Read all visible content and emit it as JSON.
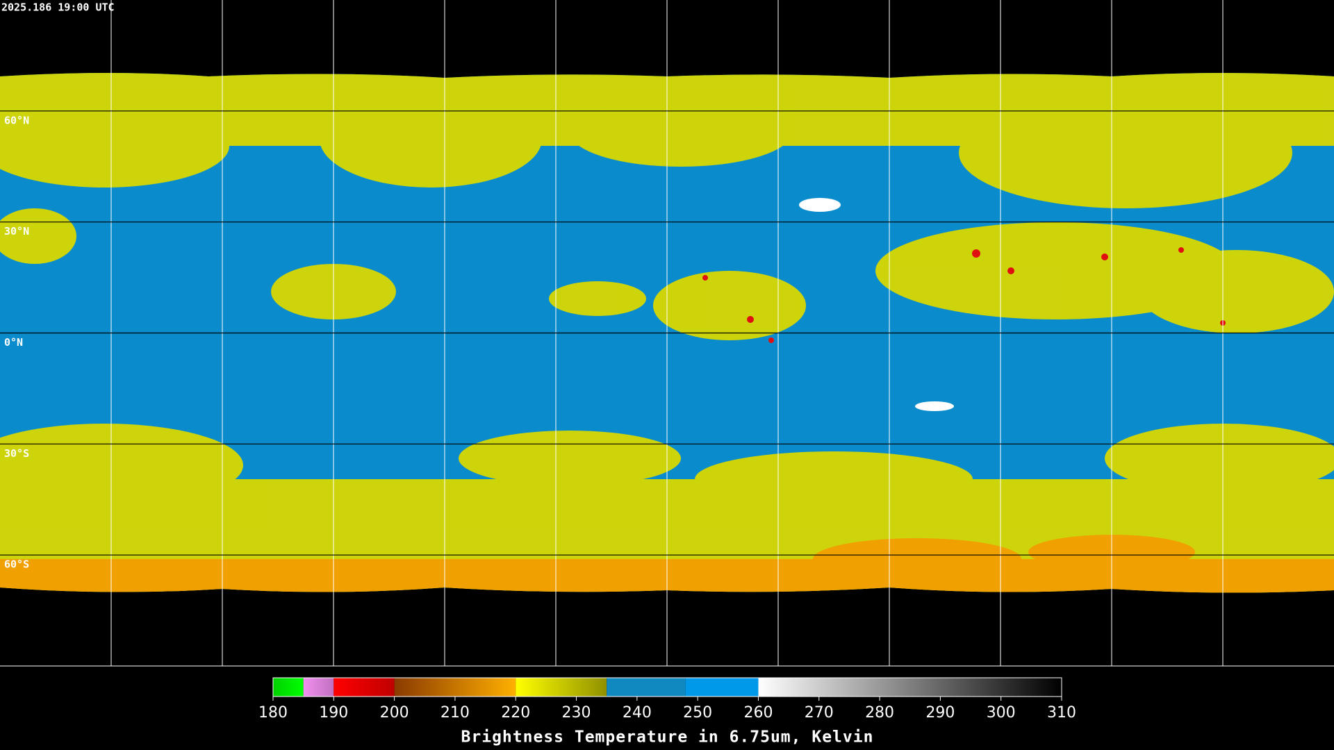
{
  "header": {
    "timestamp": "2025.186 19:00 UTC"
  },
  "map": {
    "ylim": [
      90,
      -90
    ],
    "lat_ticks": [
      {
        "value": 60,
        "label": "60°N"
      },
      {
        "value": 30,
        "label": "30°N"
      },
      {
        "value": 0,
        "label": "0°N"
      },
      {
        "value": -30,
        "label": "30°S"
      },
      {
        "value": -60,
        "label": "60°S"
      }
    ]
  },
  "colorbar": {
    "title": "Brightness Temperature in 6.75um, Kelvin",
    "xlim": [
      180,
      310
    ],
    "ticks": [
      180,
      190,
      200,
      210,
      220,
      230,
      240,
      250,
      260,
      270,
      280,
      290,
      300,
      310
    ],
    "segments": [
      {
        "from": 180,
        "to": 185,
        "colors": [
          "#00d000",
          "#00ff00"
        ]
      },
      {
        "from": 185,
        "to": 190,
        "colors": [
          "#f090f0",
          "#c070c0"
        ]
      },
      {
        "from": 190,
        "to": 200,
        "colors": [
          "#ff0000",
          "#c00000"
        ]
      },
      {
        "from": 200,
        "to": 220,
        "colors": [
          "#8a3a00",
          "#ffb000"
        ]
      },
      {
        "from": 220,
        "to": 235,
        "colors": [
          "#ffff00",
          "#909000"
        ]
      },
      {
        "from": 235,
        "to": 248,
        "colors": [
          "#1088c0",
          "#1088c0"
        ]
      },
      {
        "from": 248,
        "to": 260,
        "colors": [
          "#0098e8",
          "#0098e8"
        ]
      },
      {
        "from": 260,
        "to": 310,
        "colors": [
          "#ffffff",
          "#000000"
        ]
      }
    ]
  }
}
